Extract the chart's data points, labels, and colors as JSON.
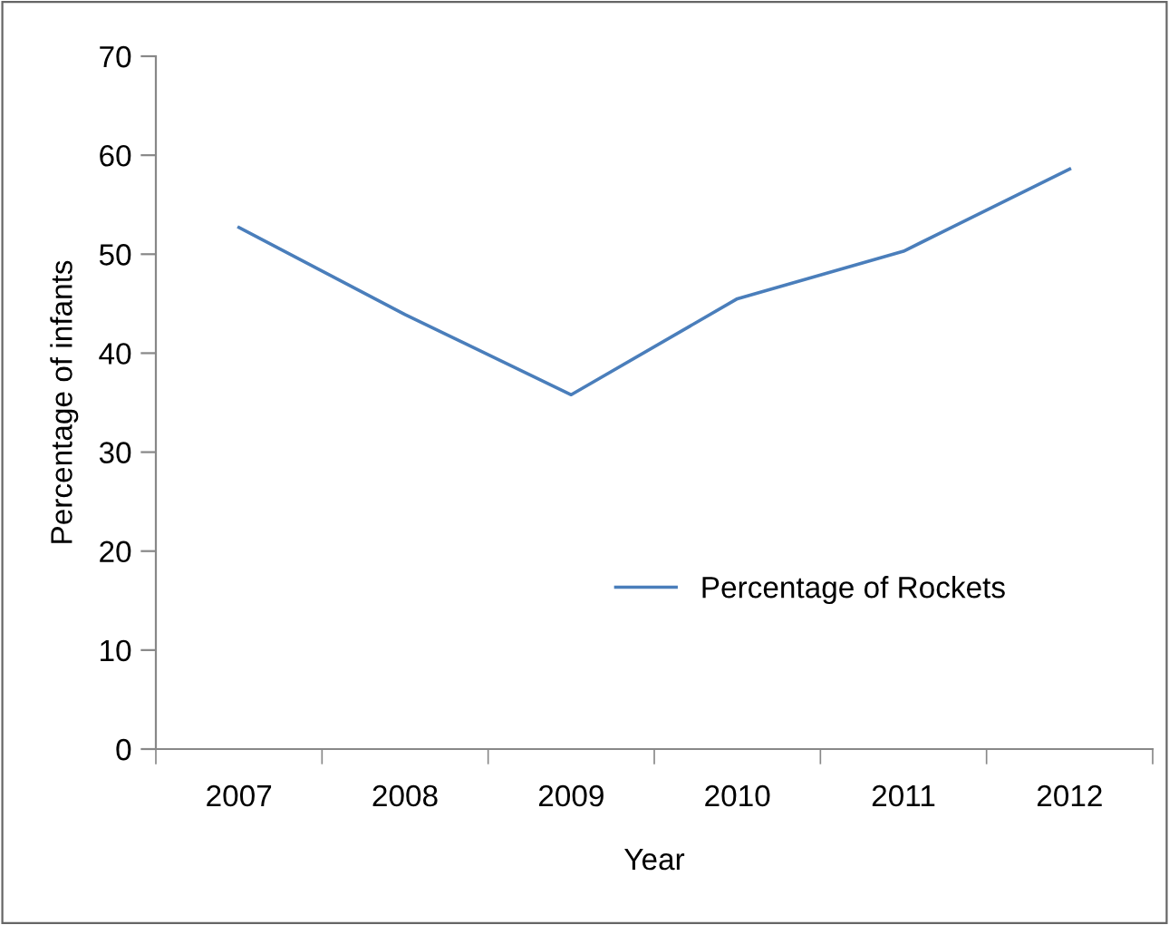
{
  "chart_data": {
    "type": "line",
    "xlabel": "Year",
    "ylabel": "Percentage of infants",
    "categories": [
      "2007",
      "2008",
      "2009",
      "2010",
      "2011",
      "2012"
    ],
    "series": [
      {
        "name": "Percentage of Rockets",
        "color": "#4a7ebb",
        "values": [
          52.7,
          43.9,
          35.8,
          45.5,
          50.3,
          58.6
        ]
      }
    ],
    "ylim": [
      0,
      70
    ],
    "yticks": [
      0,
      10,
      20,
      30,
      40,
      50,
      60,
      70
    ],
    "grid": false,
    "legend": "bottom right",
    "marker": "none",
    "line_style": "solid"
  }
}
